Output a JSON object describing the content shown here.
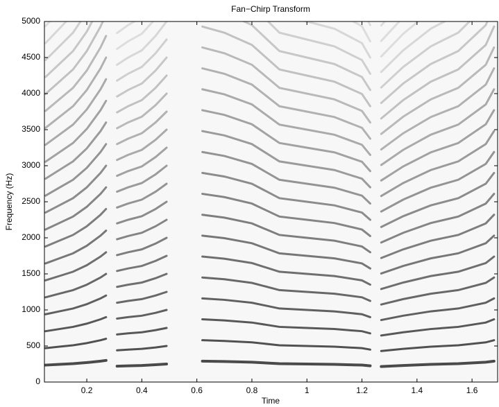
{
  "chart_data": {
    "type": "spectrogram",
    "title": "Fan−Chirp Transform",
    "x_label": "Time",
    "y_label": "Frequency (Hz)",
    "xlim": [
      0.046,
      1.693
    ],
    "ylim": [
      0,
      5000
    ],
    "xticks": [
      0.2,
      0.4,
      0.6,
      0.8,
      1,
      1.2,
      1.4,
      1.6
    ],
    "yticks": [
      0,
      500,
      1000,
      1500,
      2000,
      2500,
      3000,
      3500,
      4000,
      4500,
      5000
    ],
    "color": "#222222",
    "segments": [
      {
        "x": [
          0.05,
          0.1,
          0.15,
          0.2,
          0.25,
          0.27
        ],
        "values": [
          235,
          245,
          255,
          270,
          290,
          300
        ]
      },
      {
        "x": [
          0.31,
          0.35,
          0.4,
          0.45,
          0.49
        ],
        "values": [
          220,
          225,
          230,
          240,
          250
        ]
      },
      {
        "x": [
          0.62,
          0.7,
          0.8,
          0.9,
          1,
          1.1,
          1.2,
          1.23
        ],
        "values": [
          290,
          285,
          275,
          255,
          250,
          245,
          235,
          225
        ]
      },
      {
        "x": [
          1.27,
          1.35,
          1.45,
          1.55,
          1.65,
          1.68
        ],
        "values": [
          215,
          230,
          245,
          255,
          275,
          290
        ]
      }
    ]
  }
}
